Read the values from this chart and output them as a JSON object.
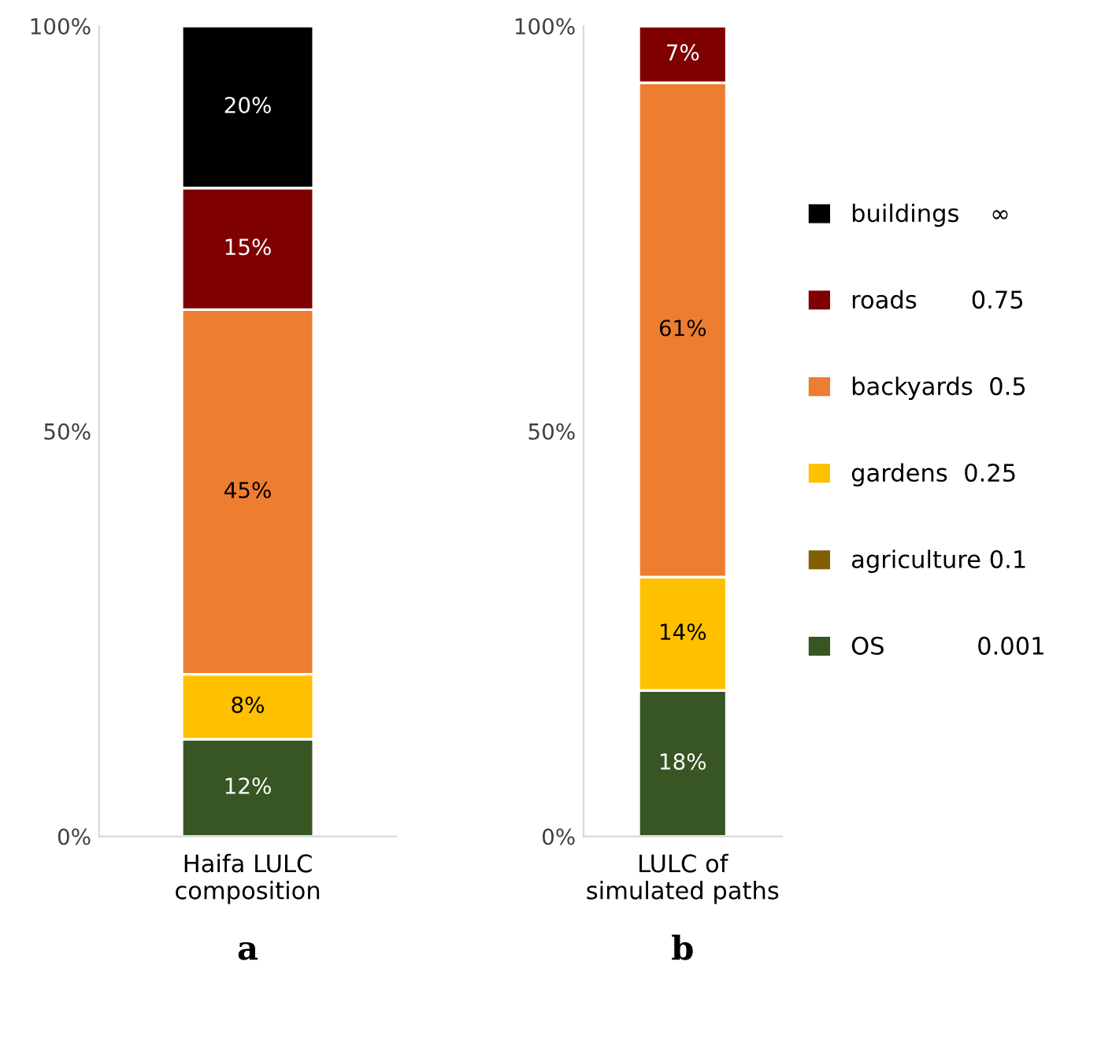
{
  "chart_data": [
    {
      "type": "bar",
      "stacked": true,
      "categories": [
        "Haifa LULC\ncomposition"
      ],
      "xlabel": "a",
      "ylim": [
        0,
        100
      ],
      "yticks": [
        {
          "value": 0,
          "label": "0%"
        },
        {
          "value": 50,
          "label": "50%"
        },
        {
          "value": 100,
          "label": "100%"
        }
      ],
      "grid": false,
      "legend": false,
      "series": [
        {
          "color": "#375623",
          "values": [
            12
          ],
          "value_labels": [
            "12%"
          ]
        },
        {
          "color": "#806000",
          "values": [
            0
          ],
          "value_labels": [
            null
          ]
        },
        {
          "color": "#ffc000",
          "values": [
            8
          ],
          "value_labels": [
            "8%"
          ]
        },
        {
          "color": "#ed7d31",
          "values": [
            45
          ],
          "value_labels": [
            "45%"
          ]
        },
        {
          "color": "#7f0000",
          "values": [
            15
          ],
          "value_labels": [
            "15%"
          ]
        },
        {
          "color": "#000000",
          "values": [
            20
          ],
          "value_labels": [
            "20%"
          ]
        }
      ]
    },
    {
      "type": "bar",
      "stacked": true,
      "categories": [
        "LULC of\nsimulated paths"
      ],
      "xlabel": "b",
      "ylim": [
        0,
        100
      ],
      "yticks": [
        {
          "value": 0,
          "label": "0%"
        },
        {
          "value": 50,
          "label": "50%"
        },
        {
          "value": 100,
          "label": "100%"
        }
      ],
      "grid": false,
      "legend": "right",
      "series": [
        {
          "name": "OS            0.001",
          "color": "#375623",
          "values": [
            18
          ],
          "value_labels": [
            "18%"
          ]
        },
        {
          "name": "agriculture 0.1",
          "color": "#806000",
          "values": [
            0
          ],
          "value_labels": [
            null
          ]
        },
        {
          "name": "gardens  0.25",
          "color": "#ffc000",
          "values": [
            14
          ],
          "value_labels": [
            "14%"
          ]
        },
        {
          "name": "backyards  0.5",
          "color": "#ed7d31",
          "values": [
            61
          ],
          "value_labels": [
            "61%"
          ]
        },
        {
          "name": "roads       0.75",
          "color": "#7f0000",
          "values": [
            7
          ],
          "value_labels": [
            "7%"
          ]
        },
        {
          "name": "buildings    ∞",
          "color": "#000000",
          "values": [
            0
          ],
          "value_labels": [
            null
          ]
        }
      ]
    }
  ]
}
